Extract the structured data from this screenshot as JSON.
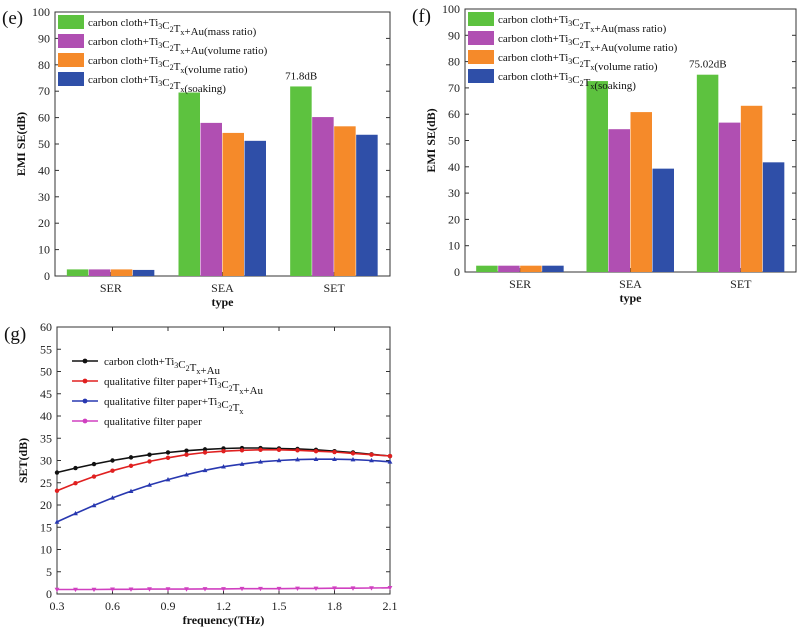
{
  "chart_data": [
    {
      "panel": "(e)",
      "type": "bar",
      "categories": [
        "SER",
        "SEA",
        "SET"
      ],
      "xlabel": "type",
      "ylabel": "EMI SE(dB)",
      "ylim": [
        0,
        100
      ],
      "yticks": [
        0,
        10,
        20,
        30,
        40,
        50,
        60,
        70,
        80,
        90,
        100
      ],
      "legend_position": "top-left",
      "series": [
        {
          "name": "carbon cloth+Ti3C2Tx+Au(mass ratio)",
          "color": "#5dc23f",
          "values": [
            2.5,
            69.5,
            71.8
          ]
        },
        {
          "name": "carbon cloth+Ti3C2Tx+Au(volume ratio)",
          "color": "#b04fb2",
          "values": [
            2.5,
            58,
            60.2
          ]
        },
        {
          "name": "carbon cloth+Ti3C2Tx(volume ratio)",
          "color": "#f58a2a",
          "values": [
            2.5,
            54.2,
            56.7
          ]
        },
        {
          "name": "carbon cloth+Ti3C2Tx(soaking)",
          "color": "#2f4fa8",
          "values": [
            2.3,
            51.2,
            53.5
          ]
        }
      ],
      "annotations": [
        {
          "text": "71.8dB",
          "category": "SET",
          "series": 0
        }
      ]
    },
    {
      "panel": "(f)",
      "type": "bar",
      "categories": [
        "SER",
        "SEA",
        "SET"
      ],
      "xlabel": "type",
      "ylabel": "EMI SE(dB)",
      "ylim": [
        0,
        100
      ],
      "yticks": [
        0,
        10,
        20,
        30,
        40,
        50,
        60,
        70,
        80,
        90,
        100
      ],
      "legend_position": "top-left",
      "series": [
        {
          "name": "carbon cloth+Ti3C2Tx+Au(mass ratio)",
          "color": "#5dc23f",
          "values": [
            2.4,
            72.6,
            75.02
          ]
        },
        {
          "name": "carbon cloth+Ti3C2Tx+Au(volume ratio)",
          "color": "#b04fb2",
          "values": [
            2.4,
            54.3,
            56.8
          ]
        },
        {
          "name": "carbon cloth+Ti3C2Tx(volume ratio)",
          "color": "#f58a2a",
          "values": [
            2.4,
            60.8,
            63.2
          ]
        },
        {
          "name": "carbon cloth+Ti3C2Tx(soaking)",
          "color": "#2f4fa8",
          "values": [
            2.4,
            39.3,
            41.7
          ]
        }
      ],
      "annotations": [
        {
          "text": "75.02dB",
          "category": "SET",
          "series": 0
        }
      ]
    },
    {
      "panel": "(g)",
      "type": "line",
      "xlabel": "frequency(THz)",
      "ylabel": "SET(dB)",
      "xlim": [
        0.3,
        2.1
      ],
      "ylim": [
        0,
        60
      ],
      "xticks": [
        0.3,
        0.6,
        0.9,
        1.2,
        1.5,
        1.8,
        2.1
      ],
      "yticks": [
        0,
        5,
        10,
        15,
        20,
        25,
        30,
        35,
        40,
        45,
        50,
        55,
        60
      ],
      "legend_position": "top-left",
      "x": [
        0.3,
        0.4,
        0.5,
        0.6,
        0.7,
        0.8,
        0.9,
        1.0,
        1.1,
        1.2,
        1.3,
        1.4,
        1.5,
        1.6,
        1.7,
        1.8,
        1.9,
        2.0,
        2.1
      ],
      "series": [
        {
          "name": "carbon cloth+Ti3C2Tx+Au",
          "color": "#111111",
          "values": [
            27.3,
            28.3,
            29.2,
            30.0,
            30.7,
            31.3,
            31.8,
            32.2,
            32.5,
            32.7,
            32.8,
            32.8,
            32.7,
            32.6,
            32.4,
            32.1,
            31.8,
            31.4,
            31.0
          ]
        },
        {
          "name": "qualitative filter paper+Ti3C2Tx+Au",
          "color": "#e02020",
          "values": [
            23.2,
            24.9,
            26.4,
            27.7,
            28.8,
            29.8,
            30.6,
            31.3,
            31.8,
            32.1,
            32.3,
            32.4,
            32.4,
            32.3,
            32.1,
            31.9,
            31.6,
            31.3,
            31.0
          ]
        },
        {
          "name": "qualitative filter paper+Ti3C2Tx",
          "color": "#2838b0",
          "values": [
            16.2,
            18.1,
            19.9,
            21.6,
            23.1,
            24.5,
            25.7,
            26.8,
            27.8,
            28.6,
            29.2,
            29.7,
            30.0,
            30.2,
            30.3,
            30.3,
            30.2,
            30.0,
            29.7
          ]
        },
        {
          "name": "qualitative filter paper",
          "color": "#d040c0",
          "values": [
            1.0,
            1.0,
            1.0,
            1.05,
            1.05,
            1.1,
            1.1,
            1.1,
            1.15,
            1.15,
            1.2,
            1.2,
            1.2,
            1.25,
            1.25,
            1.3,
            1.3,
            1.35,
            1.4
          ]
        }
      ]
    }
  ]
}
